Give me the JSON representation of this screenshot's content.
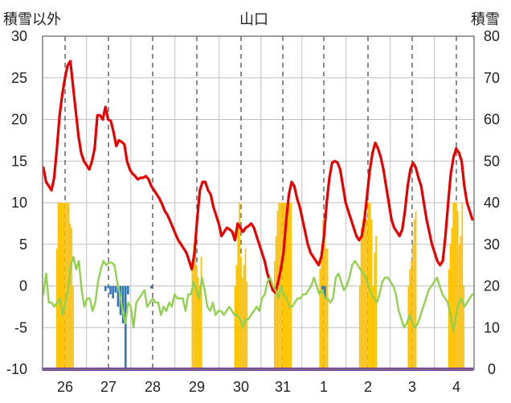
{
  "chart_data": {
    "type": "line",
    "title": "山口",
    "left_axis_label": "積雪以外",
    "right_axis_label": "積雪",
    "y_left": {
      "range": [
        -10,
        30
      ],
      "ticks": [
        "30",
        "25",
        "20",
        "15",
        "10",
        "5",
        "0",
        "-5",
        "-10"
      ]
    },
    "y_right": {
      "range": [
        0,
        80
      ],
      "ticks": [
        "80",
        "70",
        "60",
        "50",
        "40",
        "30",
        "20",
        "10",
        "0"
      ]
    },
    "x_ticks": [
      "26",
      "27",
      "28",
      "29",
      "30",
      "31",
      "1",
      "2",
      "3",
      "4"
    ],
    "grid": true,
    "series": [
      {
        "color": "#e80000",
        "axis": "left",
        "values": [
          14.2,
          12.5,
          12.0,
          11.5,
          13.0,
          16.5,
          20.5,
          23.0,
          25.0,
          26.5,
          27.0,
          24.0,
          21.0,
          18.0,
          16.0,
          15.0,
          14.5,
          14.0,
          15.0,
          16.5,
          20.5,
          20.5,
          20.0,
          21.5,
          20.0,
          19.8,
          18.5,
          16.8,
          17.5,
          17.3,
          17.0,
          15.0,
          14.0,
          13.5,
          13.2,
          12.8,
          13.0,
          13.0,
          13.2,
          12.8,
          12.0,
          11.5,
          11.0,
          10.5,
          9.8,
          9.0,
          8.5,
          7.8,
          7.0,
          6.2,
          5.5,
          5.0,
          4.5,
          4.0,
          3.0,
          2.0,
          4.0,
          8.0,
          11.5,
          12.5,
          12.5,
          11.5,
          11.0,
          9.5,
          8.5,
          7.5,
          6.0,
          6.5,
          7.0,
          6.8,
          6.5,
          5.5,
          7.5,
          7.0,
          6.5,
          7.0,
          7.2,
          7.5,
          7.0,
          6.0,
          5.0,
          4.0,
          3.0,
          1.5,
          0.5,
          -0.5,
          -0.8,
          0.5,
          2.0,
          4.0,
          8.0,
          11.0,
          12.5,
          12.0,
          10.5,
          9.5,
          8.0,
          6.5,
          5.0,
          4.0,
          3.5,
          3.0,
          2.5,
          3.5,
          6.0,
          10.0,
          13.0,
          14.8,
          15.0,
          14.8,
          14.0,
          12.0,
          10.0,
          9.0,
          8.0,
          7.0,
          6.0,
          5.5,
          6.0,
          8.0,
          11.0,
          14.0,
          16.0,
          17.2,
          16.5,
          15.5,
          14.0,
          12.0,
          10.0,
          8.0,
          7.0,
          6.5,
          6.0,
          6.8,
          9.0,
          12.0,
          14.0,
          14.8,
          14.2,
          13.0,
          12.0,
          10.0,
          8.0,
          6.5,
          5.0,
          4.0,
          3.0,
          2.5,
          3.0,
          6.0,
          10.0,
          13.5,
          15.5,
          16.5,
          16.0,
          15.0,
          12.0,
          10.0,
          9.0,
          8.0
        ]
      },
      {
        "color": "#92d050",
        "axis": "left",
        "values": [
          -1.0,
          1.5,
          -2.0,
          -2.0,
          -2.5,
          -2.0,
          -1.5,
          -3.5,
          -2.0,
          -0.5,
          2.5,
          3.5,
          2.0,
          3.0,
          -0.5,
          -2.5,
          -1.5,
          -1.5,
          -3.0,
          -2.0,
          0.5,
          2.0,
          3.0,
          2.5,
          2.8,
          2.8,
          2.5,
          0.5,
          -1.0,
          -3.0,
          -4.5,
          -2.0,
          -2.5,
          -5.0,
          -2.0,
          -1.5,
          -1.0,
          -0.5,
          -2.5,
          -2.0,
          -1.5,
          -2.0,
          -2.0,
          -3.5,
          -2.5,
          -3.0,
          -2.0,
          -2.5,
          -1.0,
          -1.5,
          -1.5,
          -1.5,
          -3.0,
          -1.0,
          -1.0,
          0.5,
          -0.5,
          -1.5,
          1.0,
          -0.5,
          -2.5,
          -3.0,
          -2.0,
          -3.5,
          -3.0,
          -3.0,
          -3.5,
          -3.0,
          -2.5,
          -3.0,
          -3.5,
          -3.5,
          -4.0,
          -5.0,
          -4.0,
          -4.0,
          -3.5,
          -3.0,
          -2.5,
          -3.0,
          -1.5,
          -1.0,
          0.5,
          1.0,
          0.0,
          -0.5,
          -1.5,
          0.0,
          -1.0,
          -1.5,
          -2.5,
          -2.5,
          -2.0,
          -1.5,
          -1.5,
          -1.0,
          -1.0,
          -0.5,
          0.0,
          1.0,
          0.0,
          -1.0,
          -0.5,
          -1.5,
          -1.5,
          -2.0,
          -1.5,
          1.0,
          1.5,
          0.5,
          -0.5,
          0.0,
          1.0,
          2.5,
          3.0,
          2.5,
          2.0,
          1.5,
          1.0,
          0.0,
          -1.0,
          -1.5,
          -2.0,
          -1.0,
          0.5,
          1.0,
          1.0,
          0.5,
          0.0,
          -1.0,
          -3.0,
          -4.0,
          -5.0,
          -4.5,
          -3.5,
          -4.5,
          -5.0,
          -4.5,
          -3.5,
          -2.5,
          -1.5,
          -0.5,
          0.0,
          0.5,
          1.0,
          0.0,
          -1.0,
          -1.5,
          -2.0,
          -3.5,
          -5.5,
          -3.5,
          -2.0,
          -1.5,
          -2.5,
          -2.0,
          -1.5,
          -1.0
        ]
      },
      {
        "color": "#7030a0",
        "axis": "left",
        "values": [
          -10,
          -10
        ]
      }
    ],
    "snow_depth_bars": {
      "color": "#ffc000",
      "axis": "right",
      "groups": [
        {
          "day": "26",
          "values": [
            29,
            40,
            40,
            40,
            40,
            40,
            40,
            40,
            40,
            35,
            34,
            20
          ]
        },
        {
          "day": "29",
          "values": [
            24,
            30,
            28,
            25,
            22,
            20,
            27
          ]
        },
        {
          "day": "30",
          "values": [
            20,
            25,
            35,
            40,
            27,
            22,
            25,
            29,
            21
          ]
        },
        {
          "day": "31",
          "values": [
            26,
            32,
            38,
            40,
            40,
            40,
            40,
            40,
            40,
            40,
            40,
            40
          ]
        },
        {
          "day": "1",
          "values": [
            24,
            28,
            36,
            33,
            29,
            29
          ]
        },
        {
          "day": "2",
          "values": [
            20,
            34,
            36,
            38,
            36,
            36,
            40,
            40,
            36,
            20,
            28,
            32
          ]
        },
        {
          "day": "3",
          "values": [
            20,
            24,
            26,
            30,
            36,
            38
          ]
        },
        {
          "day": "4",
          "values": [
            24,
            30,
            34,
            40,
            40,
            40,
            38,
            30,
            32,
            40,
            20
          ]
        }
      ]
    },
    "precip_bars": {
      "color": "#2e75b6",
      "axis": "left",
      "groups": [
        {
          "day": "27",
          "values": [
            -0.6,
            -0.2,
            -1.0,
            -1.5,
            -0.8,
            -2.5,
            -3.5,
            -4.5,
            -10,
            -1.0
          ]
        },
        {
          "day": "28",
          "values": [
            -0.3
          ]
        },
        {
          "day": "1",
          "values": [
            -0.8,
            -1.6
          ]
        }
      ]
    }
  }
}
